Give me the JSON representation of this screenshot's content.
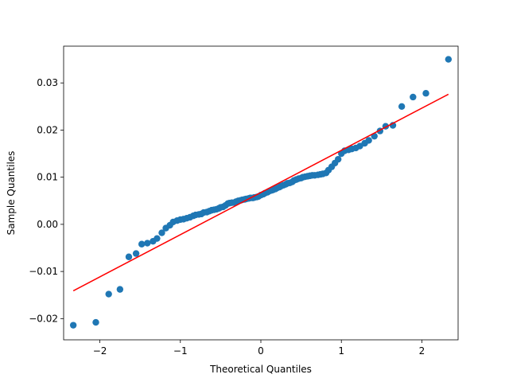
{
  "chart_data": {
    "type": "scatter",
    "title": "",
    "xlabel": "Theoretical Quantiles",
    "ylabel": "Sample Quantiles",
    "xlim": [
      -2.45,
      2.45
    ],
    "ylim": [
      -0.0245,
      0.0378
    ],
    "xticks": [
      -2,
      -1,
      0,
      1,
      2
    ],
    "xtick_labels": [
      "−2",
      "−1",
      "0",
      "1",
      "2"
    ],
    "yticks": [
      -0.02,
      -0.01,
      0.0,
      0.01,
      0.02,
      0.03
    ],
    "ytick_labels": [
      "−0.02",
      "−0.01",
      "0.00",
      "0.01",
      "0.02",
      "0.03"
    ],
    "grid": false,
    "legend": "none",
    "point_color": "#1f77b4",
    "line_color": "#ff0000",
    "reference_line": {
      "x": [
        -2.33,
        2.33
      ],
      "y": [
        -0.0141,
        0.0276
      ]
    },
    "series": [
      {
        "x": [
          -2.33,
          -2.05,
          -1.89,
          -1.75,
          -1.64,
          -1.55,
          -1.48,
          -1.41,
          -1.34,
          -1.29,
          -1.23,
          -1.18,
          -1.13,
          -1.09,
          -1.04,
          -1.0,
          -0.96,
          -0.92,
          -0.88,
          -0.84,
          -0.81,
          -0.77,
          -0.74,
          -0.71,
          -0.67,
          -0.64,
          -0.61,
          -0.58,
          -0.55,
          -0.52,
          -0.5,
          -0.47,
          -0.44,
          -0.41,
          -0.39,
          -0.36,
          -0.33,
          -0.31,
          -0.28,
          -0.25,
          -0.23,
          -0.2,
          -0.18,
          -0.15,
          -0.13,
          -0.1,
          -0.08,
          -0.05,
          -0.03,
          0.0,
          0.03,
          0.05,
          0.08,
          0.1,
          0.13,
          0.15,
          0.18,
          0.2,
          0.23,
          0.25,
          0.28,
          0.31,
          0.33,
          0.36,
          0.39,
          0.41,
          0.44,
          0.47,
          0.5,
          0.52,
          0.55,
          0.58,
          0.61,
          0.64,
          0.67,
          0.71,
          0.74,
          0.77,
          0.81,
          0.84,
          0.88,
          0.92,
          0.96,
          1.0,
          1.04,
          1.09,
          1.13,
          1.18,
          1.23,
          1.29,
          1.34,
          1.41,
          1.48,
          1.55,
          1.64,
          1.75,
          1.89,
          2.05,
          2.33
        ],
        "y": [
          -0.0214,
          -0.0208,
          -0.0148,
          -0.0138,
          -0.0069,
          -0.0062,
          -0.0042,
          -0.004,
          -0.0036,
          -0.003,
          -0.0018,
          -0.0008,
          -0.0002,
          0.0005,
          0.0008,
          0.001,
          0.0011,
          0.0013,
          0.0015,
          0.0018,
          0.002,
          0.0021,
          0.0022,
          0.0025,
          0.0026,
          0.0028,
          0.003,
          0.0031,
          0.0032,
          0.0034,
          0.0036,
          0.0037,
          0.004,
          0.0044,
          0.0045,
          0.0046,
          0.0046,
          0.0048,
          0.005,
          0.0051,
          0.0052,
          0.0053,
          0.0054,
          0.0055,
          0.0056,
          0.0056,
          0.0057,
          0.0058,
          0.0059,
          0.0062,
          0.0064,
          0.0066,
          0.0068,
          0.007,
          0.0072,
          0.0073,
          0.0075,
          0.0077,
          0.0079,
          0.0081,
          0.0083,
          0.0085,
          0.0087,
          0.0088,
          0.009,
          0.0093,
          0.0095,
          0.0097,
          0.0098,
          0.01,
          0.0101,
          0.0102,
          0.0103,
          0.0104,
          0.0104,
          0.0105,
          0.0106,
          0.0107,
          0.0109,
          0.0115,
          0.0122,
          0.013,
          0.0138,
          0.015,
          0.0156,
          0.0158,
          0.016,
          0.0162,
          0.0166,
          0.0172,
          0.0178,
          0.0187,
          0.0198,
          0.0208,
          0.021,
          0.025,
          0.027,
          0.0278,
          0.035
        ]
      }
    ]
  }
}
